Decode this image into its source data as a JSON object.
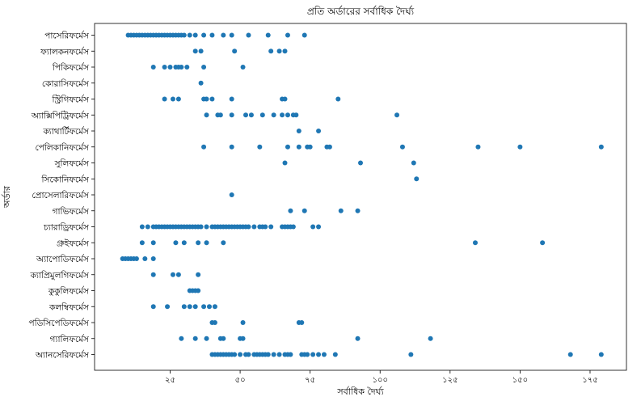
{
  "chart_data": {
    "type": "scatter",
    "title": "প্রতি অর্ডারের সর্বাধিক দৈর্ঘ্য",
    "xlabel": "সর্বাধিক দৈর্ঘ্য",
    "ylabel": "অর্ডার",
    "xlim": [
      -2,
      188
    ],
    "xticks": [
      25,
      50,
      75,
      100,
      125,
      150,
      175
    ],
    "xtick_labels": [
      "২৫",
      "৫০",
      "৭৫",
      "১০০",
      "১২৫",
      "১৫০",
      "১৭৫"
    ],
    "grid": false,
    "categories": [
      "পাসেরিফর্মেস",
      "ফ্যালকনফর্মেস",
      "পিকিফর্মেস",
      "কোরাসিফর্মেস",
      "স্ট্রিগিফর্মেস",
      "অ্যাক্সিপিট্রিফর্মেস",
      "ক্যাথার্টিফর্মেস",
      "পেলিকানিফর্মেস",
      "সুলিফর্মেস",
      "সিকোনিফর্মেস",
      "প্রোসেলারিফর্মেস",
      "গাভিফর্মেস",
      "চ্যারাড্রিফর্মেস",
      "গ্রুইফর্মেস",
      "অ্যাপোডিফর্মেস",
      "ক্যাপ্রিমুলগিফর্মেস",
      "কুকুলিফর্মেস",
      "কলম্বিফর্মেস",
      "পডিসিপেডিফর্মেস",
      "গ্যালিফর্মেস",
      "অ্যানসেরিফর্মেস"
    ],
    "series": [
      {
        "category": "পাসেরিফর্মেস",
        "x": [
          10,
          11,
          12,
          13,
          14,
          15,
          16,
          17,
          18,
          19,
          20,
          21,
          22,
          23,
          24,
          25,
          26,
          27,
          28,
          29,
          30,
          32,
          34,
          37,
          40,
          44,
          47,
          53,
          60,
          67,
          73
        ]
      },
      {
        "category": "ফ্যালকনফর্মেস",
        "x": [
          34,
          36,
          48,
          61,
          64,
          66
        ]
      },
      {
        "category": "পিকিফর্মেস",
        "x": [
          19,
          23,
          25,
          27,
          28,
          29,
          31,
          37,
          51
        ]
      },
      {
        "category": "কোরাসিফর্মেস",
        "x": [
          36
        ]
      },
      {
        "category": "স্ট্রিগিফর্মেস",
        "x": [
          23,
          26,
          28,
          37,
          38,
          40,
          47,
          65,
          66,
          85
        ]
      },
      {
        "category": "অ্যাক্সিপিট্রিফর্মেস",
        "x": [
          38,
          42,
          43,
          47,
          52,
          54,
          58,
          62,
          65,
          67,
          69,
          70,
          106
        ]
      },
      {
        "category": "ক্যাথার্টিফর্মেস",
        "x": [
          71,
          78
        ]
      },
      {
        "category": "পেলিকানিফর্মেস",
        "x": [
          37,
          47,
          57,
          67,
          71,
          74,
          75,
          81,
          82,
          108,
          135,
          150,
          179
        ]
      },
      {
        "category": "সুলিফর্মেস",
        "x": [
          66,
          93,
          112
        ]
      },
      {
        "category": "সিকোনিফর্মেস",
        "x": [
          113
        ]
      },
      {
        "category": "প্রোসেলারিফর্মেস",
        "x": [
          47
        ]
      },
      {
        "category": "গাভিফর্মেস",
        "x": [
          68,
          73,
          86,
          92
        ]
      },
      {
        "category": "চ্যারাড্রিফর্মেস",
        "x": [
          15,
          17,
          19,
          20,
          21,
          22,
          23,
          24,
          25,
          26,
          27,
          28,
          29,
          30,
          31,
          32,
          33,
          34,
          35,
          36,
          38,
          40,
          41,
          42,
          43,
          44,
          45,
          46,
          47,
          48,
          49,
          50,
          51,
          52,
          53,
          55,
          57,
          58,
          59,
          61,
          65,
          66,
          67,
          68,
          69,
          76,
          78
        ]
      },
      {
        "category": "গ্রুইফর্মেস",
        "x": [
          15,
          19,
          27,
          30,
          35,
          38,
          44,
          134,
          158
        ]
      },
      {
        "category": "অ্যাপোডিফর্মেস",
        "x": [
          8,
          9,
          10,
          11,
          12,
          13,
          16,
          19
        ]
      },
      {
        "category": "ক্যাপ্রিমুলগিফর্মেস",
        "x": [
          19,
          26,
          28,
          35
        ]
      },
      {
        "category": "কুকুলিফর্মেস",
        "x": [
          32,
          33,
          34,
          35
        ]
      },
      {
        "category": "কলম্বিফর্মেস",
        "x": [
          19,
          24,
          30,
          32,
          34,
          37,
          39,
          41
        ]
      },
      {
        "category": "পডিসিপেডিফর্মেস",
        "x": [
          40,
          41,
          51,
          71,
          72
        ]
      },
      {
        "category": "গ্যালিফর্মেস",
        "x": [
          29,
          34,
          38,
          43,
          44,
          50,
          51,
          92,
          118
        ]
      },
      {
        "category": "অ্যানসেরিফর্মেস",
        "x": [
          40,
          41,
          42,
          43,
          44,
          45,
          46,
          47,
          48,
          50,
          52,
          53,
          55,
          56,
          57,
          58,
          59,
          60,
          62,
          64,
          66,
          67,
          68,
          72,
          73,
          74,
          76,
          78,
          80,
          84,
          111,
          168,
          179
        ]
      }
    ]
  }
}
